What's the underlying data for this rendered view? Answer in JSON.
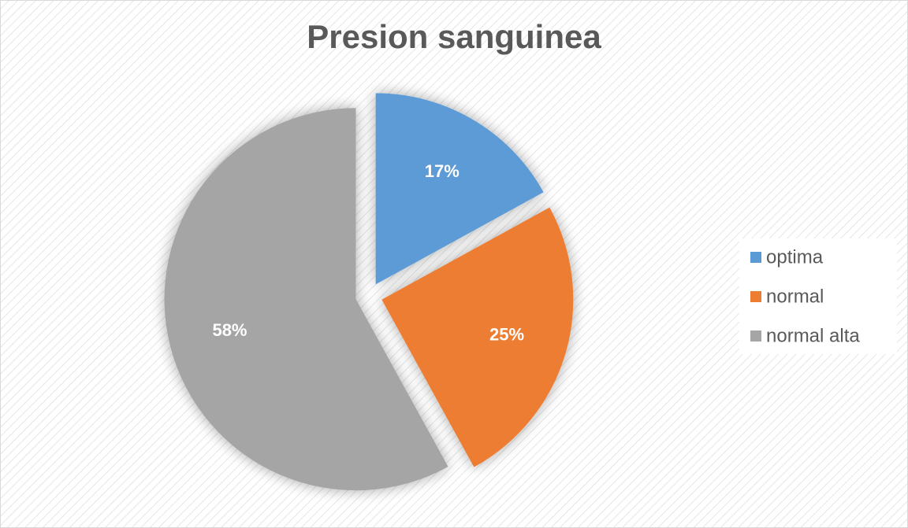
{
  "chart_data": {
    "type": "pie",
    "title": "Presion sanguinea",
    "categories": [
      "optima",
      "normal",
      "normal alta"
    ],
    "values": [
      17,
      25,
      58
    ],
    "value_labels": [
      "17%",
      "25%",
      "58%"
    ],
    "colors": [
      "#5b9bd5",
      "#ed7d31",
      "#a5a5a5"
    ],
    "legend": "right"
  }
}
